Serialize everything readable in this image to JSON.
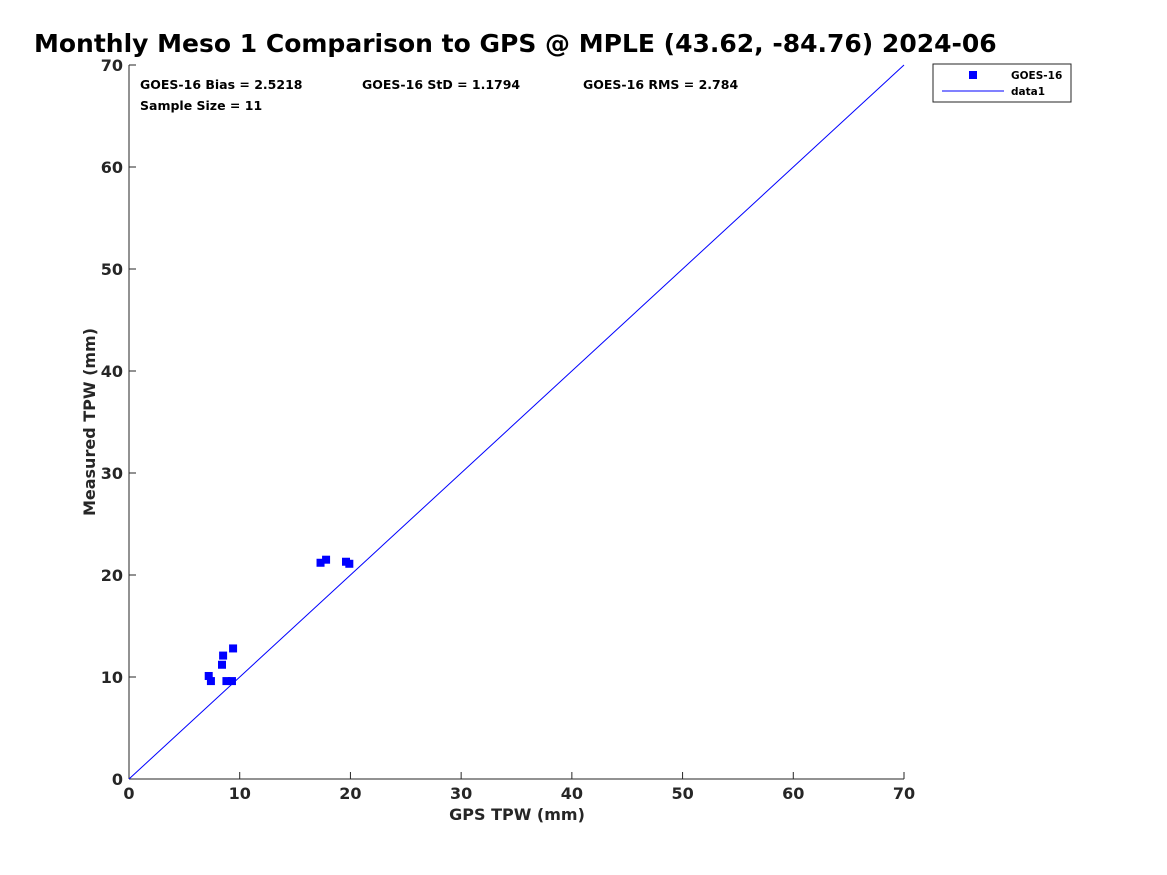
{
  "chart_data": {
    "type": "scatter",
    "title": "Monthly Meso 1 Comparison to GPS @ MPLE (43.62, -84.76) 2024-06",
    "xlabel": "GPS TPW (mm)",
    "ylabel": "Measured TPW (mm)",
    "xlim": [
      0,
      70
    ],
    "ylim": [
      0,
      70
    ],
    "xticks": [
      "0",
      "10",
      "20",
      "30",
      "40",
      "50",
      "60",
      "70"
    ],
    "yticks": [
      "0",
      "10",
      "20",
      "30",
      "40",
      "50",
      "60",
      "70"
    ],
    "grid": false,
    "legend_position": "outside-top-right",
    "stats": {
      "bias": "GOES-16 Bias = 2.5218",
      "std": "GOES-16 StD = 1.1794",
      "rms": "GOES-16 RMS = 2.784",
      "sample_size": "Sample Size = 11"
    },
    "series": [
      {
        "name": "GOES-16",
        "kind": "scatter",
        "marker": "square",
        "color": "#0000ff",
        "points": [
          {
            "x": 7.2,
            "y": 10.1
          },
          {
            "x": 7.4,
            "y": 9.6
          },
          {
            "x": 8.4,
            "y": 11.2
          },
          {
            "x": 8.5,
            "y": 12.1
          },
          {
            "x": 8.8,
            "y": 9.6
          },
          {
            "x": 9.3,
            "y": 9.6
          },
          {
            "x": 9.4,
            "y": 12.8
          },
          {
            "x": 17.3,
            "y": 21.2
          },
          {
            "x": 17.8,
            "y": 21.5
          },
          {
            "x": 19.6,
            "y": 21.3
          },
          {
            "x": 19.9,
            "y": 21.1
          }
        ]
      },
      {
        "name": "data1",
        "kind": "line",
        "color": "#0000ff",
        "points": [
          {
            "x": 0,
            "y": 0
          },
          {
            "x": 70,
            "y": 70
          }
        ]
      }
    ]
  }
}
